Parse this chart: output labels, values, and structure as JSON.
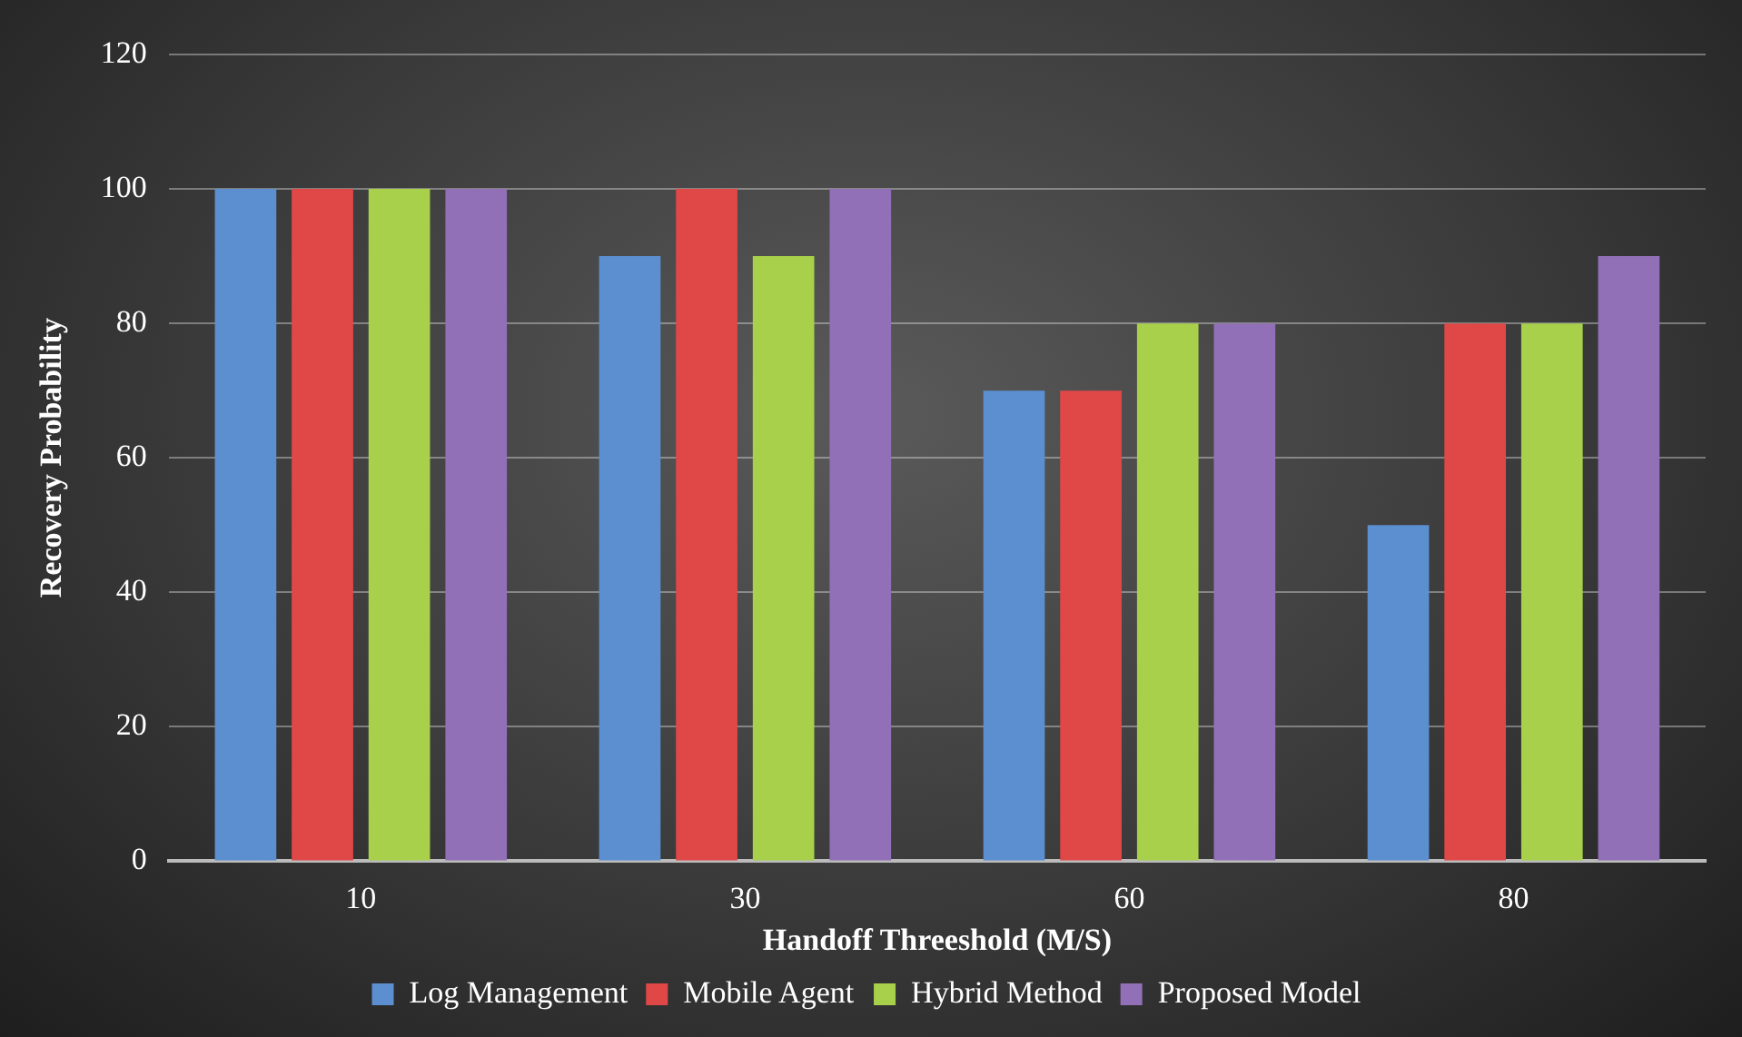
{
  "chart_data": {
    "type": "bar",
    "xlabel": "Handoff Threeshold (M/S)",
    "ylabel": "Recovery Probability",
    "categories": [
      "10",
      "30",
      "60",
      "80"
    ],
    "series": [
      {
        "name": "Log Management",
        "color": "#5b8fd0",
        "values": [
          100,
          90,
          70,
          50
        ]
      },
      {
        "name": "Mobile Agent",
        "color": "#e04848",
        "values": [
          100,
          100,
          70,
          80
        ]
      },
      {
        "name": "Hybrid Method",
        "color": "#a8d04a",
        "values": [
          100,
          90,
          80,
          80
        ]
      },
      {
        "name": "Proposed Model",
        "color": "#9270b8",
        "values": [
          100,
          100,
          80,
          90
        ]
      }
    ],
    "ylim": [
      0,
      120
    ],
    "yticks": [
      0,
      20,
      40,
      60,
      80,
      100,
      120
    ],
    "grid": "y",
    "legend": "bottom"
  }
}
